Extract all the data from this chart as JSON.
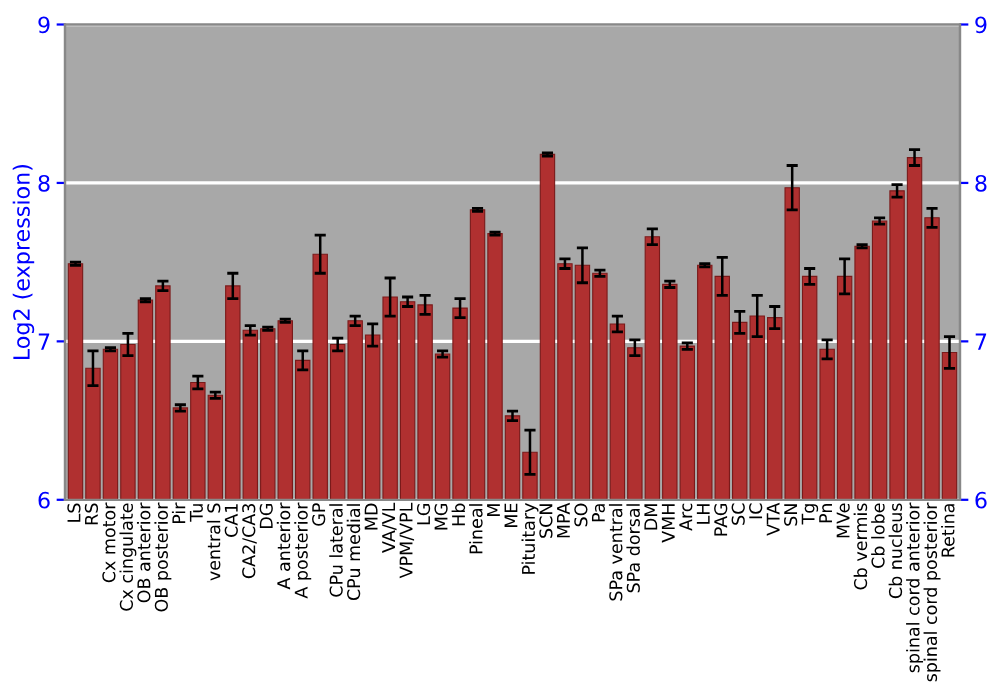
{
  "chart_data": {
    "type": "bar",
    "ylabel": "Log2 (expression)",
    "categories": [
      "LS",
      "RS",
      "Cx motor",
      "Cx cingulate",
      "OB anterior",
      "OB posterior",
      "Pir",
      "Tu",
      "ventral S",
      "CA1",
      "CA2/CA3",
      "DG",
      "A anterior",
      "A posterior",
      "GP",
      "CPu lateral",
      "CPu medial",
      "MD",
      "VA/VL",
      "VPM/VPL",
      "LG",
      "MG",
      "Hb",
      "Pineal",
      "M",
      "ME",
      "Pituitary",
      "SCN",
      "MPA",
      "SO",
      "Pa",
      "SPa ventral",
      "SPa dorsal",
      "DM",
      "VMH",
      "Arc",
      "LH",
      "PAG",
      "SC",
      "IC",
      "VTA",
      "SN",
      "Tg",
      "Pn",
      "MVe",
      "Cb vermis",
      "Cb lobe",
      "Cb nucleus",
      "spinal cord anterior",
      "spinal cord posterior",
      "Retina"
    ],
    "values": [
      7.49,
      6.83,
      6.95,
      6.98,
      7.26,
      7.35,
      6.58,
      6.74,
      6.66,
      7.35,
      7.07,
      7.08,
      7.13,
      6.88,
      7.55,
      6.98,
      7.13,
      7.04,
      7.28,
      7.25,
      7.23,
      6.92,
      7.21,
      7.83,
      7.68,
      6.53,
      6.3,
      8.18,
      7.49,
      7.48,
      7.43,
      7.11,
      6.96,
      7.66,
      7.36,
      6.97,
      7.48,
      7.41,
      7.12,
      7.16,
      7.15,
      7.97,
      7.41,
      6.95,
      7.41,
      7.6,
      7.76,
      7.95,
      8.16,
      7.78,
      6.93
    ],
    "errors": [
      0.01,
      0.11,
      0.01,
      0.07,
      0.01,
      0.03,
      0.02,
      0.04,
      0.02,
      0.08,
      0.03,
      0.01,
      0.01,
      0.06,
      0.12,
      0.04,
      0.03,
      0.07,
      0.12,
      0.03,
      0.06,
      0.02,
      0.06,
      0.01,
      0.01,
      0.03,
      0.14,
      0.01,
      0.03,
      0.11,
      0.02,
      0.05,
      0.05,
      0.05,
      0.02,
      0.02,
      0.01,
      0.12,
      0.07,
      0.13,
      0.07,
      0.14,
      0.05,
      0.06,
      0.11,
      0.01,
      0.02,
      0.04,
      0.05,
      0.06,
      0.1
    ],
    "color": "#b03030",
    "ylim": [
      6,
      9
    ],
    "yticks": [
      6,
      7,
      8,
      9
    ],
    "y2lim": [
      6,
      9
    ],
    "y2ticks": [
      6,
      7,
      8,
      9
    ],
    "grid": "y"
  }
}
